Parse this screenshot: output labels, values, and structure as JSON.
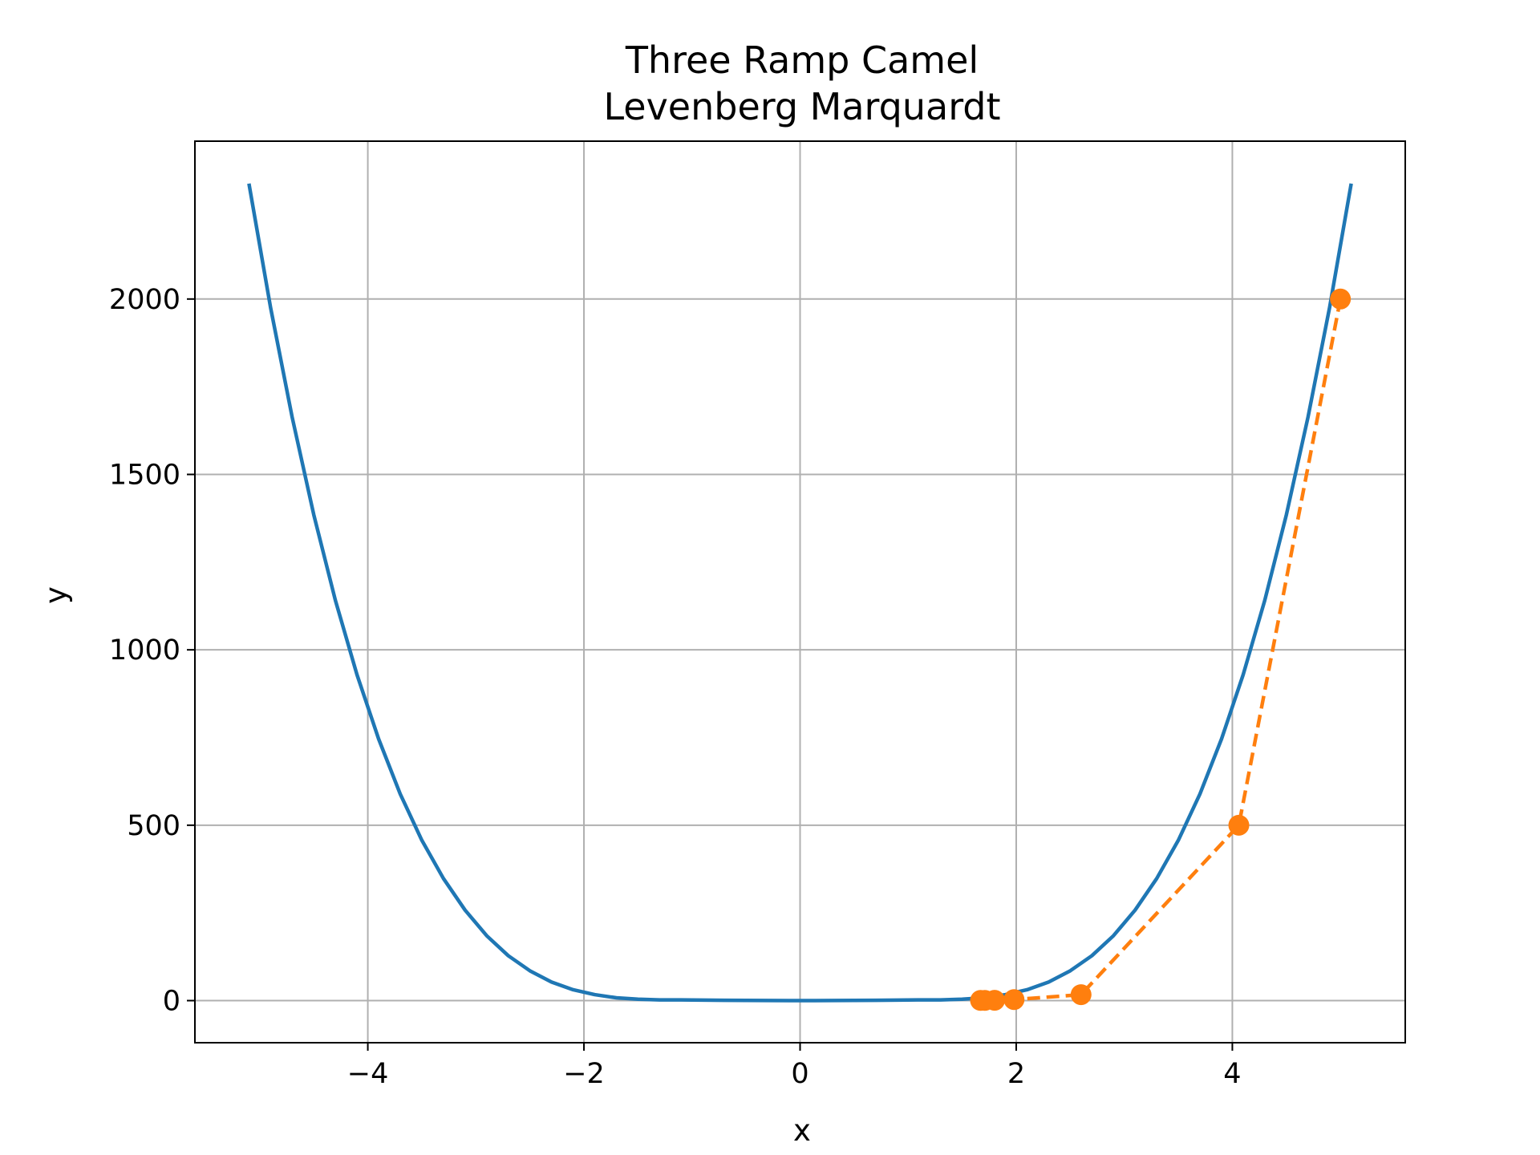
{
  "chart_data": {
    "type": "line",
    "title": "Three Ramp Camel",
    "subtitle": "Levenberg Marquardt",
    "xlabel": "x",
    "ylabel": "y",
    "xlim": [
      -5.6,
      5.6
    ],
    "ylim": [
      -120,
      2450
    ],
    "xticks": [
      -4,
      -2,
      0,
      2,
      4
    ],
    "yticks": [
      0,
      500,
      1000,
      1500,
      2000
    ],
    "xtick_labels": [
      "−4",
      "−2",
      "0",
      "2",
      "4"
    ],
    "ytick_labels": [
      "0",
      "500",
      "1000",
      "1500",
      "2000"
    ],
    "grid": true,
    "series": [
      {
        "color": "#1f77b4",
        "style": "solid",
        "x": [
          -5.1,
          -4.9,
          -4.7,
          -4.5,
          -4.3,
          -4.1,
          -3.9,
          -3.7,
          -3.5,
          -3.3,
          -3.1,
          -2.9,
          -2.7,
          -2.5,
          -2.3,
          -2.1,
          -1.9,
          -1.7,
          -1.5,
          -1.3,
          -1.1,
          -0.9,
          -0.7,
          -0.5,
          -0.3,
          -0.1,
          0.1,
          0.3,
          0.5,
          0.7,
          0.9,
          1.1,
          1.3,
          1.5,
          1.7,
          1.9,
          2.1,
          2.3,
          2.5,
          2.7,
          2.9,
          3.1,
          3.3,
          3.5,
          3.7,
          3.9,
          4.1,
          4.3,
          4.5,
          4.7,
          4.9,
          5.1
        ],
        "y": [
          2329,
          1976,
          1663,
          1385,
          1141,
          929,
          746,
          589,
          457,
          348,
          258,
          185,
          128,
          85,
          53,
          31,
          17,
          8,
          4,
          2,
          2,
          1.5,
          1,
          0.5,
          0.2,
          0.02,
          0.02,
          0.2,
          0.5,
          1,
          1.5,
          2,
          2,
          4,
          8,
          17,
          31,
          53,
          85,
          128,
          185,
          258,
          348,
          457,
          589,
          746,
          929,
          1141,
          1385,
          1663,
          1976,
          2329
        ]
      },
      {
        "color": "#ff7f0e",
        "style": "dashed",
        "marker": "circle",
        "x": [
          5.0,
          4.06,
          2.6,
          1.98,
          1.8,
          1.71,
          1.67
        ],
        "y": [
          2000,
          500,
          17,
          3,
          1,
          0.7,
          0.5
        ]
      }
    ]
  }
}
